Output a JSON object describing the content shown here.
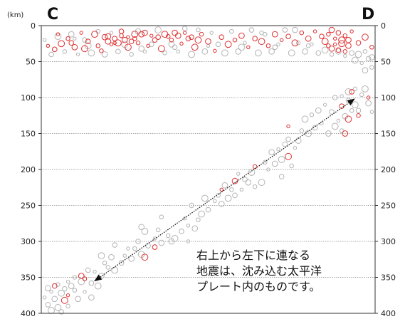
{
  "chart_data": {
    "type": "scatter",
    "title": "",
    "unit_label": "(km)",
    "end_labels": {
      "left": "C",
      "right": "D"
    },
    "ylabel": "",
    "ylim": [
      0,
      400
    ],
    "y_inverted": true,
    "yticks": [
      0,
      50,
      100,
      150,
      200,
      250,
      300,
      350,
      400
    ],
    "grid": true,
    "xlim": [
      0,
      1
    ],
    "annotation": {
      "lines": [
        "右上から左下に連なる",
        "地震は、沈み込む太平洋",
        "プレート内のものです。"
      ]
    },
    "arrow": {
      "from": [
        0.16,
        355
      ],
      "to": [
        0.938,
        102
      ]
    },
    "series": [
      {
        "color": "#e03030",
        "points": [
          [
            0.02,
            28
          ],
          [
            0.04,
            33
          ],
          [
            0.06,
            25
          ],
          [
            0.08,
            18
          ],
          [
            0.1,
            30
          ],
          [
            0.12,
            10
          ],
          [
            0.14,
            22
          ],
          [
            0.16,
            12
          ],
          [
            0.18,
            35
          ],
          [
            0.2,
            15
          ],
          [
            0.22,
            24
          ],
          [
            0.24,
            8
          ],
          [
            0.26,
            30
          ],
          [
            0.28,
            18
          ],
          [
            0.3,
            12
          ],
          [
            0.32,
            28
          ],
          [
            0.34,
            20
          ],
          [
            0.36,
            32
          ],
          [
            0.38,
            15
          ],
          [
            0.4,
            10
          ],
          [
            0.42,
            25
          ],
          [
            0.44,
            18
          ],
          [
            0.46,
            30
          ],
          [
            0.48,
            12
          ],
          [
            0.5,
            22
          ],
          [
            0.52,
            35
          ],
          [
            0.54,
            16
          ],
          [
            0.56,
            26
          ],
          [
            0.58,
            20
          ],
          [
            0.6,
            14
          ],
          [
            0.62,
            30
          ],
          [
            0.64,
            18
          ],
          [
            0.66,
            22
          ],
          [
            0.68,
            28
          ],
          [
            0.7,
            12
          ],
          [
            0.72,
            20
          ],
          [
            0.74,
            15
          ],
          [
            0.76,
            24
          ],
          [
            0.78,
            10
          ],
          [
            0.8,
            18
          ],
          [
            0.82,
            8
          ],
          [
            0.84,
            15
          ],
          [
            0.85,
            22
          ],
          [
            0.86,
            12
          ],
          [
            0.87,
            6
          ],
          [
            0.88,
            18
          ],
          [
            0.89,
            10
          ],
          [
            0.9,
            25
          ],
          [
            0.91,
            14
          ],
          [
            0.92,
            20
          ],
          [
            0.93,
            8
          ],
          [
            0.95,
            24
          ],
          [
            0.97,
            16
          ],
          [
            0.99,
            30
          ],
          [
            0.2,
            22
          ],
          [
            0.21,
            26
          ],
          [
            0.22,
            18
          ],
          [
            0.23,
            24
          ],
          [
            0.24,
            14
          ],
          [
            0.25,
            20
          ],
          [
            0.26,
            16
          ],
          [
            0.27,
            22
          ],
          [
            0.28,
            12
          ],
          [
            0.29,
            24
          ],
          [
            0.31,
            10
          ],
          [
            0.33,
            14
          ],
          [
            0.35,
            16
          ],
          [
            0.37,
            12
          ],
          [
            0.39,
            20
          ],
          [
            0.41,
            14
          ],
          [
            0.43,
            10
          ],
          [
            0.45,
            16
          ],
          [
            0.47,
            20
          ],
          [
            0.86,
            28
          ],
          [
            0.87,
            32
          ],
          [
            0.88,
            26
          ],
          [
            0.89,
            34
          ],
          [
            0.9,
            20
          ],
          [
            0.91,
            36
          ],
          [
            0.92,
            28
          ],
          [
            0.05,
            12
          ],
          [
            0.09,
            24
          ],
          [
            0.13,
            32
          ],
          [
            0.17,
            28
          ],
          [
            0.19,
            16
          ],
          [
            0.74,
            140
          ],
          [
            0.9,
            112
          ],
          [
            0.92,
            130
          ],
          [
            0.95,
            125
          ],
          [
            0.91,
            150
          ],
          [
            0.98,
            100
          ],
          [
            0.93,
            92
          ],
          [
            0.74,
            182
          ],
          [
            0.64,
            196
          ],
          [
            0.58,
            216
          ],
          [
            0.54,
            228
          ],
          [
            0.34,
            308
          ],
          [
            0.31,
            322
          ],
          [
            0.13,
            352
          ],
          [
            0.12,
            348
          ],
          [
            0.08,
            375
          ],
          [
            0.04,
            362
          ],
          [
            0.07,
            382
          ]
        ]
      },
      {
        "color": "#b4b4b4",
        "points": [
          [
            0.01,
            20
          ],
          [
            0.03,
            40
          ],
          [
            0.05,
            15
          ],
          [
            0.07,
            36
          ],
          [
            0.09,
            12
          ],
          [
            0.11,
            40
          ],
          [
            0.13,
            20
          ],
          [
            0.15,
            38
          ],
          [
            0.17,
            8
          ],
          [
            0.19,
            40
          ],
          [
            0.21,
            10
          ],
          [
            0.23,
            36
          ],
          [
            0.25,
            26
          ],
          [
            0.27,
            40
          ],
          [
            0.29,
            8
          ],
          [
            0.31,
            36
          ],
          [
            0.33,
            26
          ],
          [
            0.35,
            6
          ],
          [
            0.37,
            38
          ],
          [
            0.39,
            26
          ],
          [
            0.41,
            36
          ],
          [
            0.43,
            4
          ],
          [
            0.45,
            40
          ],
          [
            0.47,
            6
          ],
          [
            0.49,
            36
          ],
          [
            0.51,
            10
          ],
          [
            0.53,
            26
          ],
          [
            0.55,
            38
          ],
          [
            0.57,
            8
          ],
          [
            0.59,
            36
          ],
          [
            0.61,
            24
          ],
          [
            0.63,
            6
          ],
          [
            0.65,
            38
          ],
          [
            0.67,
            12
          ],
          [
            0.69,
            36
          ],
          [
            0.71,
            26
          ],
          [
            0.73,
            6
          ],
          [
            0.75,
            38
          ],
          [
            0.77,
            24
          ],
          [
            0.79,
            36
          ],
          [
            0.81,
            26
          ],
          [
            0.83,
            38
          ],
          [
            0.85,
            34
          ],
          [
            0.87,
            40
          ],
          [
            0.89,
            36
          ],
          [
            0.91,
            42
          ],
          [
            0.93,
            38
          ],
          [
            0.95,
            40
          ],
          [
            0.97,
            36
          ],
          [
            0.99,
            44
          ],
          [
            0.96,
            52
          ],
          [
            0.98,
            46
          ],
          [
            0.94,
            48
          ],
          [
            0.99,
            58
          ],
          [
            0.97,
            62
          ],
          [
            0.1,
            18
          ],
          [
            0.4,
            30
          ],
          [
            0.6,
            30
          ],
          [
            0.8,
            28
          ],
          [
            0.3,
            32
          ],
          [
            0.5,
            28
          ],
          [
            0.7,
            30
          ],
          [
            0.14,
            28
          ],
          [
            0.66,
            10
          ],
          [
            0.76,
            6
          ],
          [
            0.9,
            98
          ],
          [
            0.92,
            104
          ],
          [
            0.94,
            110
          ],
          [
            0.96,
            96
          ],
          [
            0.98,
            108
          ],
          [
            0.99,
            120
          ],
          [
            0.95,
            118
          ],
          [
            0.97,
            88
          ],
          [
            0.93,
            118
          ],
          [
            0.91,
            126
          ],
          [
            0.89,
            132
          ],
          [
            0.87,
            120
          ],
          [
            0.88,
            140
          ],
          [
            0.9,
            146
          ],
          [
            0.86,
            150
          ],
          [
            0.84,
            136
          ],
          [
            0.82,
            142
          ],
          [
            0.8,
            150
          ],
          [
            0.78,
            146
          ],
          [
            0.77,
            160
          ],
          [
            0.76,
            170
          ],
          [
            0.74,
            158
          ],
          [
            0.72,
            186
          ],
          [
            0.75,
            195
          ],
          [
            0.7,
            192
          ],
          [
            0.68,
            200
          ],
          [
            0.72,
            210
          ],
          [
            0.66,
            218
          ],
          [
            0.64,
            224
          ],
          [
            0.62,
            218
          ],
          [
            0.6,
            228
          ],
          [
            0.58,
            236
          ],
          [
            0.56,
            240
          ],
          [
            0.57,
            228
          ],
          [
            0.54,
            248
          ],
          [
            0.52,
            244
          ],
          [
            0.5,
            256
          ],
          [
            0.48,
            262
          ],
          [
            0.47,
            270
          ],
          [
            0.46,
            282
          ],
          [
            0.44,
            278
          ],
          [
            0.42,
            286
          ],
          [
            0.4,
            296
          ],
          [
            0.38,
            292
          ],
          [
            0.36,
            302
          ],
          [
            0.34,
            296
          ],
          [
            0.32,
            306
          ],
          [
            0.3,
            318
          ],
          [
            0.28,
            310
          ],
          [
            0.27,
            324
          ],
          [
            0.25,
            320
          ],
          [
            0.24,
            330
          ],
          [
            0.22,
            340
          ],
          [
            0.2,
            336
          ],
          [
            0.18,
            348
          ],
          [
            0.16,
            342
          ],
          [
            0.14,
            340
          ],
          [
            0.12,
            356
          ],
          [
            0.1,
            350
          ],
          [
            0.09,
            362
          ],
          [
            0.08,
            356
          ],
          [
            0.07,
            366
          ],
          [
            0.06,
            372
          ],
          [
            0.05,
            360
          ],
          [
            0.04,
            380
          ],
          [
            0.03,
            370
          ],
          [
            0.02,
            388
          ],
          [
            0.05,
            392
          ],
          [
            0.08,
            390
          ],
          [
            0.11,
            380
          ],
          [
            0.13,
            370
          ],
          [
            0.15,
            358
          ],
          [
            0.17,
            362
          ],
          [
            0.19,
            330
          ],
          [
            0.21,
            322
          ],
          [
            0.26,
            310
          ],
          [
            0.29,
            300
          ],
          [
            0.31,
            286
          ],
          [
            0.35,
            284
          ],
          [
            0.39,
            300
          ],
          [
            0.43,
            268
          ],
          [
            0.45,
            250
          ],
          [
            0.49,
            240
          ],
          [
            0.53,
            236
          ],
          [
            0.55,
            222
          ],
          [
            0.59,
            206
          ],
          [
            0.61,
            214
          ],
          [
            0.63,
            204
          ],
          [
            0.67,
            190
          ],
          [
            0.69,
            176
          ],
          [
            0.71,
            172
          ],
          [
            0.73,
            165
          ],
          [
            0.79,
            130
          ],
          [
            0.81,
            124
          ],
          [
            0.83,
            118
          ],
          [
            0.85,
            110
          ],
          [
            0.88,
            100
          ],
          [
            0.92,
            92
          ],
          [
            0.94,
            88
          ],
          [
            0.3,
            280
          ],
          [
            0.44,
            300
          ],
          [
            0.22,
            305
          ],
          [
            0.18,
            320
          ],
          [
            0.36,
            266
          ],
          [
            0.02,
            365
          ],
          [
            0.01,
            378
          ],
          [
            0.06,
            398
          ],
          [
            0.03,
            396
          ],
          [
            0.1,
            368
          ],
          [
            0.15,
            378
          ]
        ]
      }
    ]
  }
}
